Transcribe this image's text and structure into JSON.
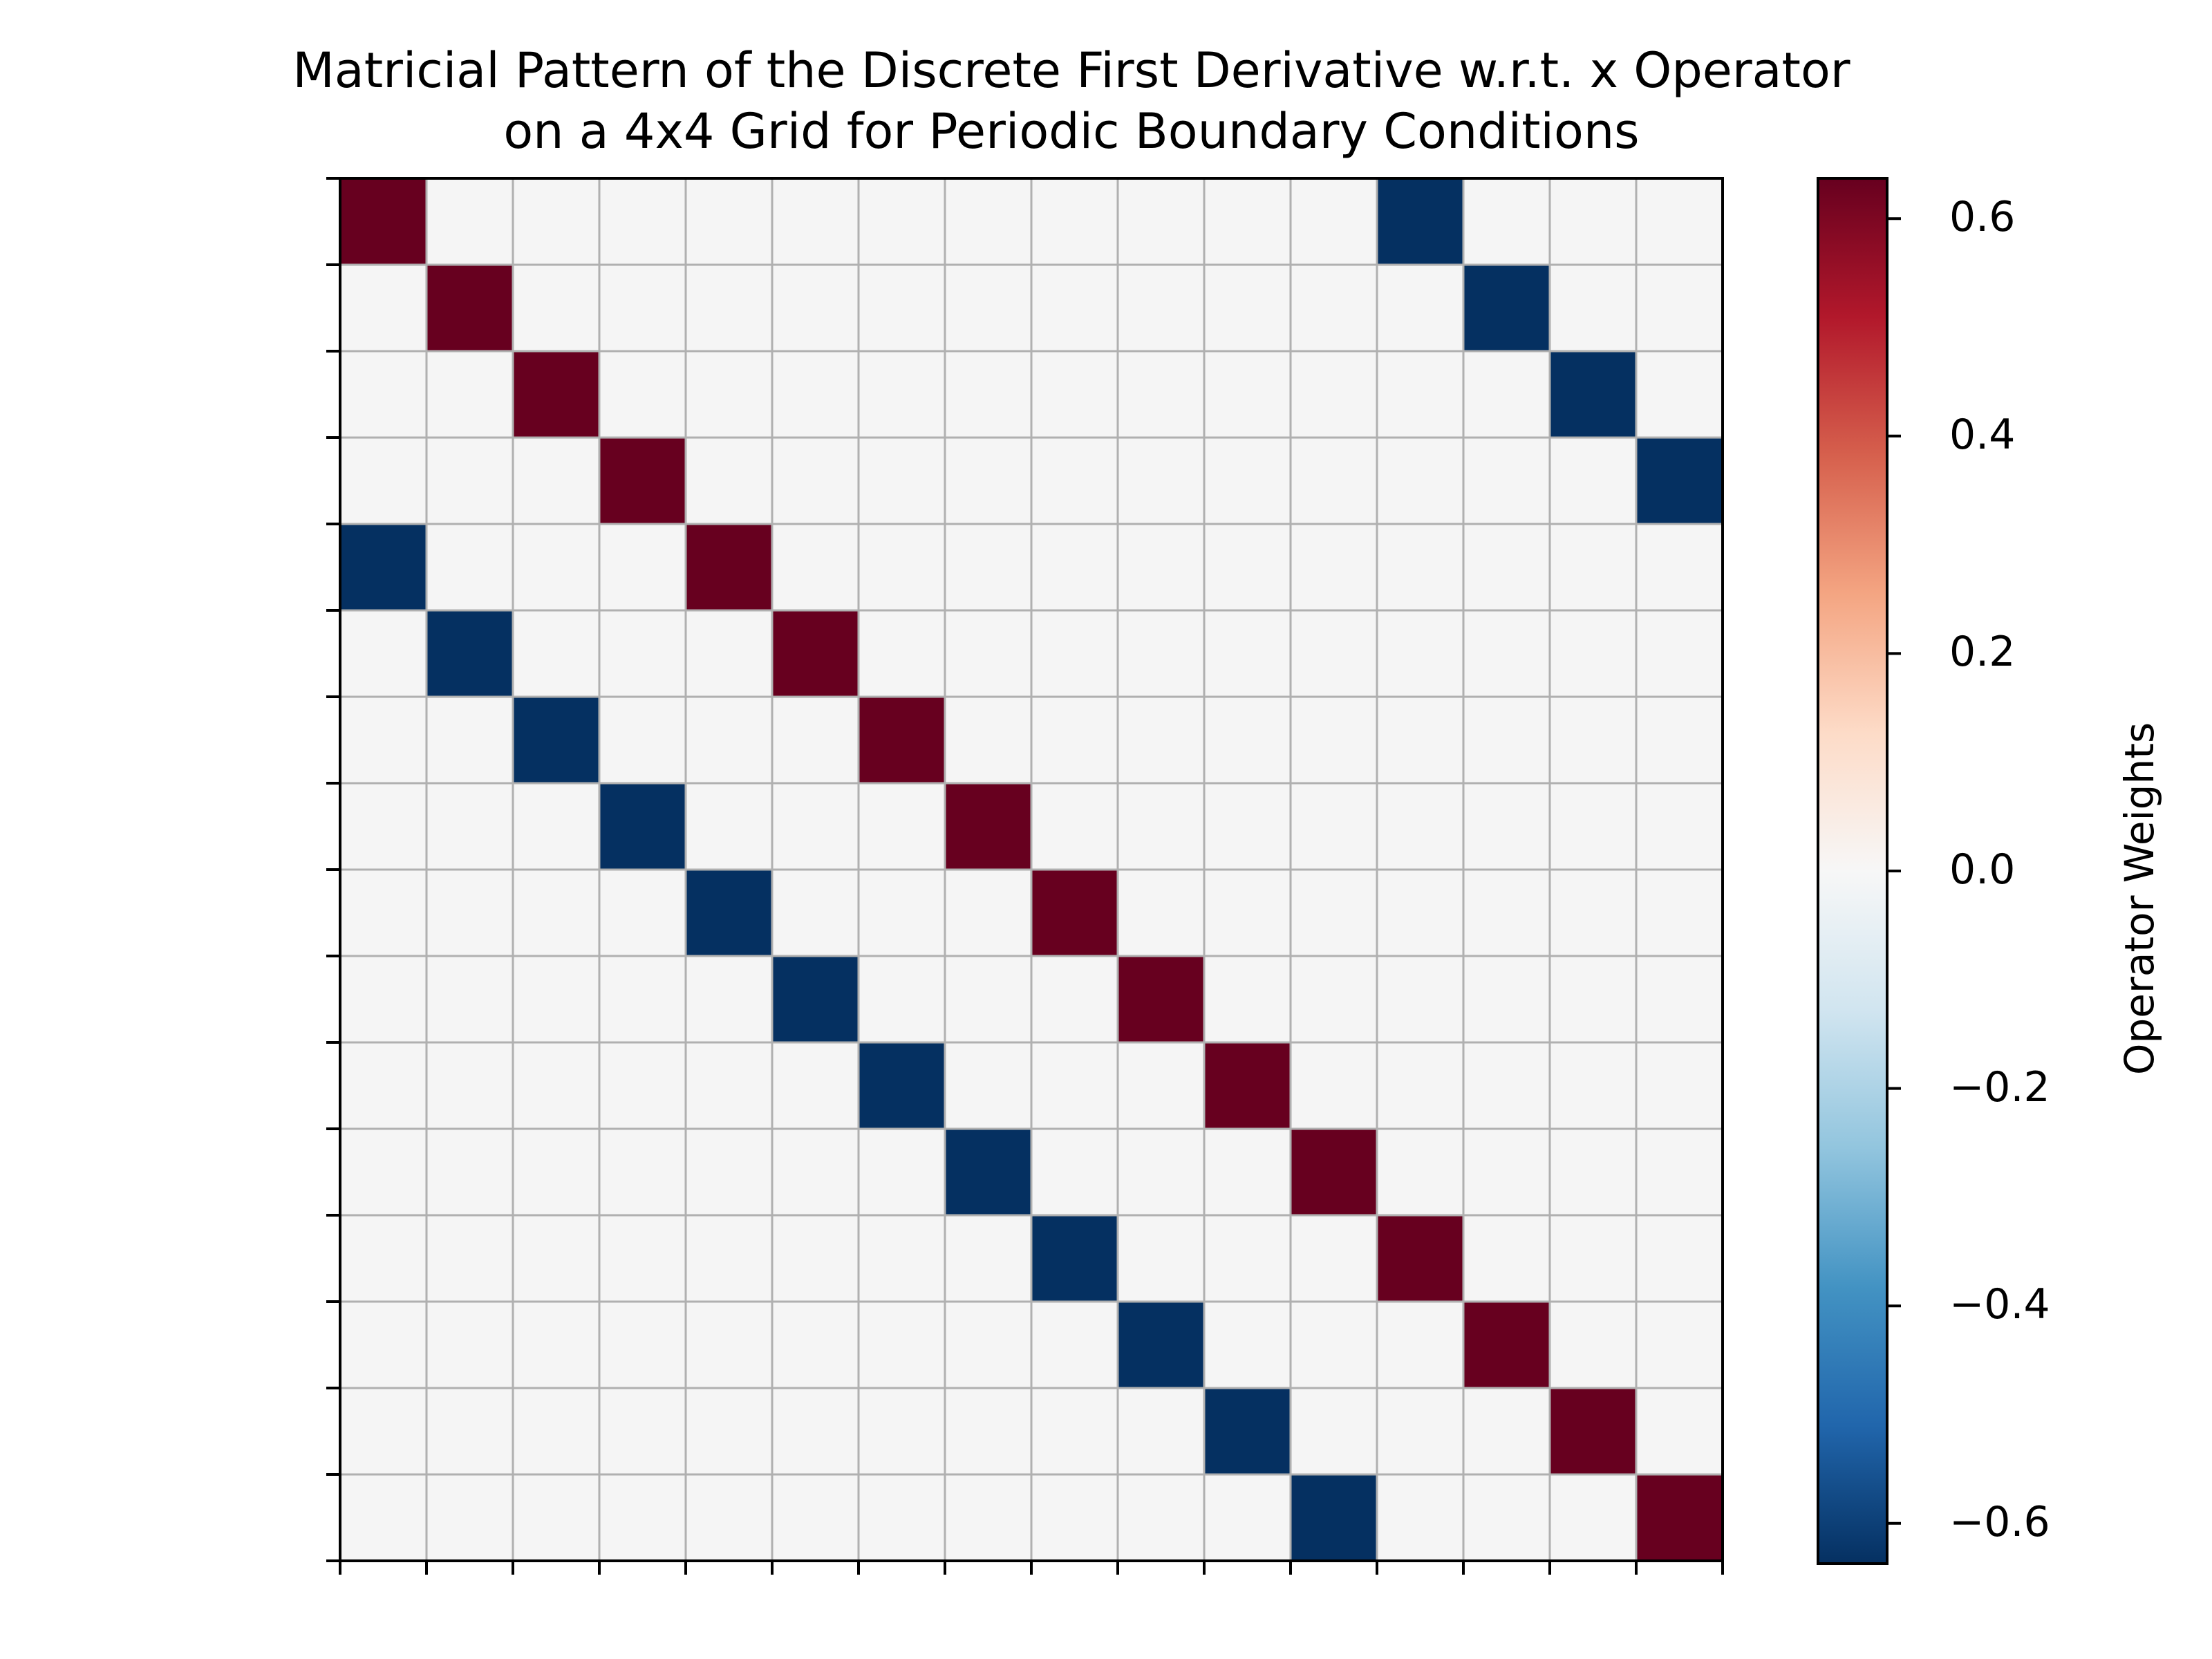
{
  "chart_data": {
    "type": "heatmap",
    "title": "Matricial Pattern of the Discrete First Derivative w.r.t. x Operator on a 4x4 Grid for Periodic Boundary Conditions",
    "title_lines": [
      "Matricial Pattern of the Discrete First Derivative w.r.t. x Operator",
      "on a 4x4 Grid for Periodic Boundary Conditions"
    ],
    "rows": 16,
    "cols": 16,
    "xlabel": "",
    "ylabel": "",
    "tick_labels_shown": false,
    "grid": true,
    "colormap": "RdBu_r",
    "value_range": [
      -0.637,
      0.637
    ],
    "colorbar": {
      "label": "Operator Weights",
      "ticks": [
        0.6,
        0.4,
        0.2,
        0.0,
        -0.2,
        -0.4,
        -0.6
      ],
      "tick_labels": [
        "0.6",
        "0.4",
        "0.2",
        "0.0",
        "−0.2",
        "−0.4",
        "−0.6"
      ]
    },
    "zero_color": "#f5f5f5",
    "positive_color": "#67001f",
    "negative_color": "#053061",
    "cells": [
      {
        "row": 0,
        "col": 0,
        "value": 0.637
      },
      {
        "row": 0,
        "col": 12,
        "value": -0.637
      },
      {
        "row": 1,
        "col": 1,
        "value": 0.637
      },
      {
        "row": 1,
        "col": 13,
        "value": -0.637
      },
      {
        "row": 2,
        "col": 2,
        "value": 0.637
      },
      {
        "row": 2,
        "col": 14,
        "value": -0.637
      },
      {
        "row": 3,
        "col": 3,
        "value": 0.637
      },
      {
        "row": 3,
        "col": 15,
        "value": -0.637
      },
      {
        "row": 4,
        "col": 0,
        "value": -0.637
      },
      {
        "row": 4,
        "col": 4,
        "value": 0.637
      },
      {
        "row": 5,
        "col": 1,
        "value": -0.637
      },
      {
        "row": 5,
        "col": 5,
        "value": 0.637
      },
      {
        "row": 6,
        "col": 2,
        "value": -0.637
      },
      {
        "row": 6,
        "col": 6,
        "value": 0.637
      },
      {
        "row": 7,
        "col": 3,
        "value": -0.637
      },
      {
        "row": 7,
        "col": 7,
        "value": 0.637
      },
      {
        "row": 8,
        "col": 4,
        "value": -0.637
      },
      {
        "row": 8,
        "col": 8,
        "value": 0.637
      },
      {
        "row": 9,
        "col": 5,
        "value": -0.637
      },
      {
        "row": 9,
        "col": 9,
        "value": 0.637
      },
      {
        "row": 10,
        "col": 6,
        "value": -0.637
      },
      {
        "row": 10,
        "col": 10,
        "value": 0.637
      },
      {
        "row": 11,
        "col": 7,
        "value": -0.637
      },
      {
        "row": 11,
        "col": 11,
        "value": 0.637
      },
      {
        "row": 12,
        "col": 8,
        "value": -0.637
      },
      {
        "row": 12,
        "col": 12,
        "value": 0.637
      },
      {
        "row": 13,
        "col": 9,
        "value": -0.637
      },
      {
        "row": 13,
        "col": 13,
        "value": 0.637
      },
      {
        "row": 14,
        "col": 10,
        "value": -0.637
      },
      {
        "row": 14,
        "col": 14,
        "value": 0.637
      },
      {
        "row": 15,
        "col": 11,
        "value": -0.637
      },
      {
        "row": 15,
        "col": 15,
        "value": 0.637
      }
    ]
  }
}
